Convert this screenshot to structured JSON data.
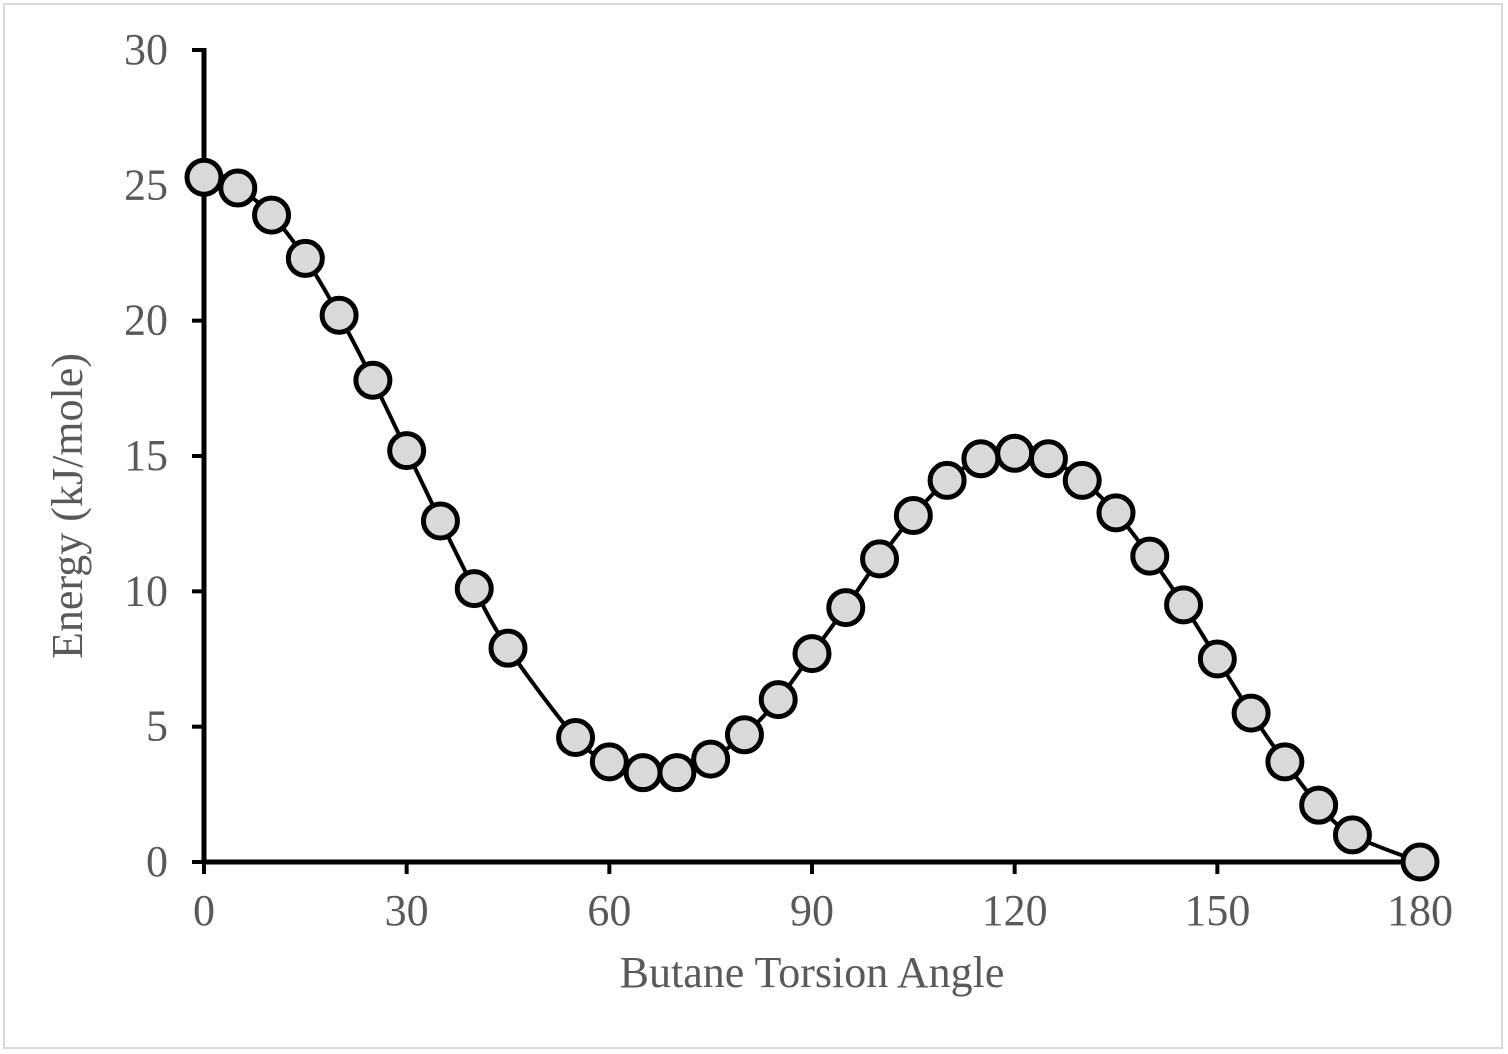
{
  "chart_data": {
    "type": "line",
    "title": "",
    "xlabel": "Butane Torsion Angle",
    "ylabel": "Energy (kJ/mole)",
    "xlim": [
      0,
      180
    ],
    "ylim": [
      0,
      30
    ],
    "xticks": [
      0,
      30,
      60,
      90,
      120,
      150,
      180
    ],
    "yticks": [
      0,
      5,
      10,
      15,
      20,
      25,
      30
    ],
    "xtick_labels": [
      "0",
      "30",
      "60",
      "90",
      "120",
      "150",
      "180"
    ],
    "ytick_labels": [
      "0",
      "5",
      "10",
      "15",
      "20",
      "25",
      "30"
    ],
    "grid": false,
    "legend": "none",
    "series": [
      {
        "line_color": "#000000",
        "marker": "circle",
        "marker_fill": "#d9d9d9",
        "marker_edge": "#000000",
        "x": [
          0,
          5,
          10,
          15,
          20,
          25,
          30,
          35,
          40,
          45,
          55,
          60,
          65,
          70,
          75,
          80,
          85,
          90,
          95,
          100,
          105,
          110,
          115,
          120,
          125,
          130,
          135,
          140,
          145,
          150,
          155,
          160,
          165,
          170,
          180
        ],
        "y": [
          25.3,
          24.9,
          23.9,
          22.3,
          20.2,
          17.8,
          15.2,
          12.6,
          10.1,
          7.9,
          4.6,
          3.7,
          3.3,
          3.3,
          3.8,
          4.7,
          6.0,
          7.7,
          9.4,
          11.2,
          12.8,
          14.1,
          14.9,
          15.1,
          14.9,
          14.1,
          12.9,
          11.3,
          9.5,
          7.5,
          5.5,
          3.7,
          2.1,
          1.0,
          0.0
        ]
      }
    ]
  }
}
